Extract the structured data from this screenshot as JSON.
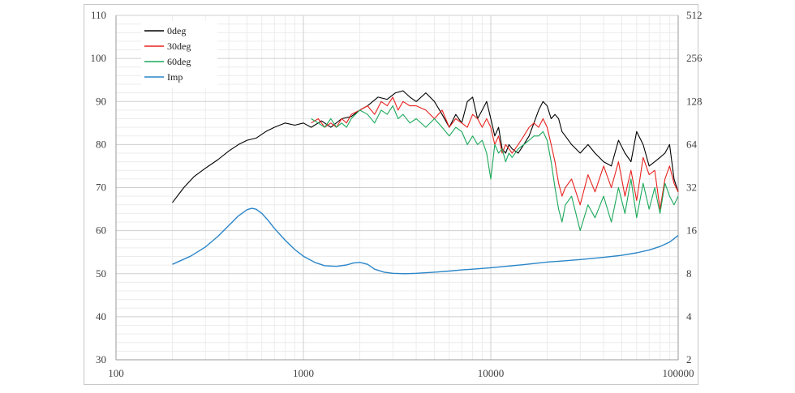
{
  "chart_data": {
    "type": "line",
    "title": "",
    "xlabel": "",
    "ylabel": "",
    "x_scale": "log",
    "xlim": [
      100,
      100000
    ],
    "x_ticks": [
      "100",
      "1000",
      "10000",
      "100000"
    ],
    "ylim": [
      30,
      110
    ],
    "y_ticks": [
      "30",
      "40",
      "50",
      "60",
      "70",
      "80",
      "90",
      "100",
      "110"
    ],
    "y2_scale": "log2",
    "y2lim": [
      2,
      512
    ],
    "y2_ticks": [
      "2",
      "4",
      "8",
      "16",
      "32",
      "64",
      "128",
      "256",
      "512"
    ],
    "grid": true,
    "legend_position": "top-left",
    "series": [
      {
        "name": "0deg",
        "color": "#000000",
        "axis": "left",
        "x": [
          200,
          230,
          260,
          300,
          350,
          400,
          450,
          500,
          560,
          630,
          700,
          800,
          900,
          1000,
          1100,
          1250,
          1400,
          1600,
          1800,
          2000,
          2200,
          2500,
          2800,
          3100,
          3400,
          3700,
          4000,
          4500,
          5000,
          5500,
          6000,
          6500,
          7000,
          7500,
          8000,
          8500,
          9000,
          9500,
          10000,
          10500,
          11000,
          11500,
          12000,
          12500,
          13000,
          14000,
          15000,
          16000,
          17000,
          18000,
          19000,
          20000,
          21000,
          22000,
          23000,
          24000,
          25000,
          27000,
          30000,
          33000,
          36000,
          40000,
          44000,
          48000,
          52000,
          56000,
          60000,
          65000,
          70000,
          75000,
          80000,
          85000,
          90000,
          95000,
          100000
        ],
        "y": [
          66.5,
          70,
          72.5,
          74.5,
          76.5,
          78.5,
          80,
          81,
          81.5,
          83,
          84,
          85,
          84.5,
          85,
          84,
          85.5,
          84,
          86,
          86.5,
          88,
          89,
          91,
          90.5,
          92,
          92.5,
          91,
          90,
          92,
          90,
          87,
          84,
          87,
          85,
          90,
          91,
          86,
          88,
          90,
          86,
          82,
          84,
          79,
          78,
          80,
          79,
          78,
          80,
          82,
          85,
          88,
          90,
          89,
          86,
          87,
          86,
          83,
          82,
          80,
          78,
          80,
          78,
          76,
          75,
          81,
          78,
          76,
          83,
          80,
          75,
          76,
          77,
          78,
          80,
          72,
          69
        ]
      },
      {
        "name": "30deg",
        "color": "#e8221e",
        "axis": "left",
        "x": [
          1100,
          1200,
          1300,
          1400,
          1500,
          1600,
          1700,
          1800,
          2000,
          2200,
          2400,
          2600,
          2800,
          3000,
          3200,
          3400,
          3700,
          4000,
          4500,
          5000,
          5500,
          6000,
          6500,
          7000,
          7500,
          8000,
          8500,
          9000,
          9500,
          10000,
          10500,
          11000,
          11500,
          12000,
          12500,
          13000,
          14000,
          15000,
          16000,
          17000,
          18000,
          19000,
          20000,
          21000,
          22000,
          23000,
          24000,
          25000,
          27000,
          30000,
          33000,
          36000,
          40000,
          44000,
          48000,
          52000,
          56000,
          60000,
          65000,
          70000,
          75000,
          80000,
          85000,
          90000,
          95000,
          100000
        ],
        "y": [
          85,
          86,
          84,
          85,
          84,
          86,
          85,
          87,
          88,
          89,
          87,
          90,
          89,
          91,
          88,
          90,
          89,
          89,
          88,
          86,
          88,
          84,
          86,
          85,
          84,
          87,
          86,
          84,
          86,
          84,
          80,
          82,
          78,
          80,
          79,
          78,
          80,
          82,
          84,
          85,
          84,
          86,
          84,
          80,
          76,
          71,
          68,
          70,
          72,
          66,
          73,
          69,
          75,
          70,
          76,
          68,
          74,
          67,
          77,
          73,
          74,
          65,
          72,
          75,
          71,
          69
        ]
      },
      {
        "name": "60deg",
        "color": "#1aa85a",
        "axis": "left",
        "x": [
          1100,
          1200,
          1300,
          1400,
          1500,
          1600,
          1700,
          1800,
          2000,
          2200,
          2400,
          2600,
          2800,
          3000,
          3200,
          3400,
          3700,
          4000,
          4500,
          5000,
          5500,
          6000,
          6500,
          7000,
          7500,
          8000,
          8500,
          9000,
          9500,
          10000,
          10500,
          11000,
          11500,
          12000,
          12500,
          13000,
          14000,
          15000,
          16000,
          17000,
          18000,
          19000,
          20000,
          21000,
          22000,
          23000,
          24000,
          25000,
          27000,
          30000,
          33000,
          36000,
          40000,
          44000,
          48000,
          52000,
          56000,
          60000,
          65000,
          70000,
          75000,
          80000,
          85000,
          90000,
          95000,
          100000
        ],
        "y": [
          86,
          85,
          84,
          86,
          84,
          85,
          84,
          86,
          88,
          87,
          85,
          88,
          87,
          89,
          86,
          87,
          85,
          86,
          84,
          86,
          84,
          82,
          84,
          83,
          80,
          82,
          80,
          81,
          78,
          72,
          80,
          78,
          79,
          76,
          78,
          77,
          79,
          80,
          81,
          82,
          82,
          83,
          81,
          76,
          70,
          65,
          62,
          66,
          68,
          60,
          66,
          63,
          68,
          62,
          70,
          64,
          72,
          63,
          71,
          65,
          70,
          64,
          71,
          68,
          66,
          68
        ]
      },
      {
        "name": "Imp",
        "color": "#2a86c8",
        "axis": "right",
        "x": [
          200,
          250,
          300,
          350,
          400,
          450,
          500,
          530,
          560,
          600,
          650,
          700,
          800,
          900,
          1000,
          1150,
          1300,
          1500,
          1700,
          1850,
          2000,
          2200,
          2400,
          2700,
          3000,
          3500,
          4000,
          5000,
          6000,
          7000,
          8000,
          10000,
          12000,
          15000,
          20000,
          25000,
          30000,
          40000,
          50000,
          60000,
          70000,
          80000,
          90000,
          100000
        ],
        "y": [
          9.3,
          10.6,
          12.3,
          14.6,
          17.4,
          20.3,
          22.4,
          22.9,
          22.6,
          21.1,
          18.8,
          16.6,
          13.7,
          11.8,
          10.6,
          9.6,
          9.1,
          9.0,
          9.2,
          9.5,
          9.6,
          9.3,
          8.6,
          8.2,
          8.05,
          8.0,
          8.05,
          8.2,
          8.35,
          8.5,
          8.6,
          8.8,
          9.0,
          9.25,
          9.65,
          9.85,
          10.05,
          10.4,
          10.75,
          11.2,
          11.7,
          12.4,
          13.3,
          14.8
        ]
      }
    ]
  }
}
